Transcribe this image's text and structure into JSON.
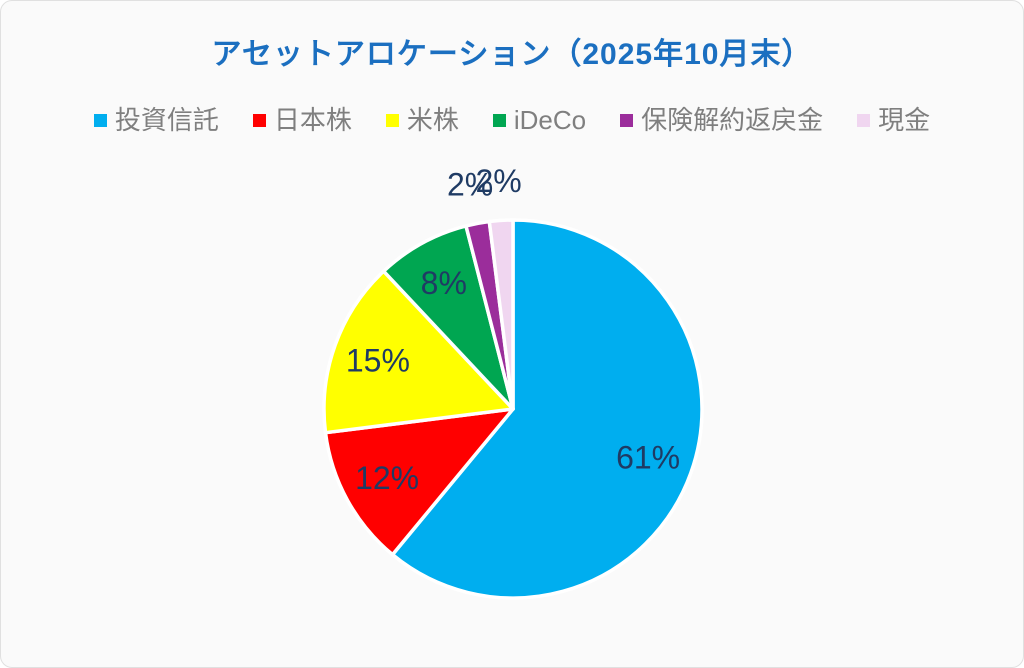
{
  "header": {
    "title": "アセットアロケーション（2025年10月末）",
    "title_color": "#1B6FC0"
  },
  "legend": {
    "text_color": "#7F7F7F",
    "position": "top"
  },
  "chart_data": {
    "type": "pie",
    "title": "アセットアロケーション（2025年10月末）",
    "unit": "%",
    "categories": [
      "投資信託",
      "日本株",
      "米株",
      "iDeCo",
      "保険解約返戻金",
      "現金"
    ],
    "series": [
      {
        "name": "投資信託",
        "value": 61,
        "label": "61%",
        "color": "#00AEEF"
      },
      {
        "name": "日本株",
        "value": 12,
        "label": "12%",
        "color": "#FF0000"
      },
      {
        "name": "米株",
        "value": 15,
        "label": "15%",
        "color": "#FFFF00"
      },
      {
        "name": "iDeCo",
        "value": 8,
        "label": "8%",
        "color": "#00A651"
      },
      {
        "name": "保険解約返戻金",
        "value": 2,
        "label": "2%",
        "color": "#9B2D9B"
      },
      {
        "name": "現金",
        "value": 2,
        "label": "2%",
        "color": "#F0D6F0"
      }
    ],
    "start_angle_deg": 0,
    "direction": "clockwise",
    "slice_border_color": "#FFFFFF",
    "data_label_color": "#1F3B64",
    "outside_label_threshold": 2,
    "legend_position": "top",
    "background": "#FAFAFA"
  }
}
